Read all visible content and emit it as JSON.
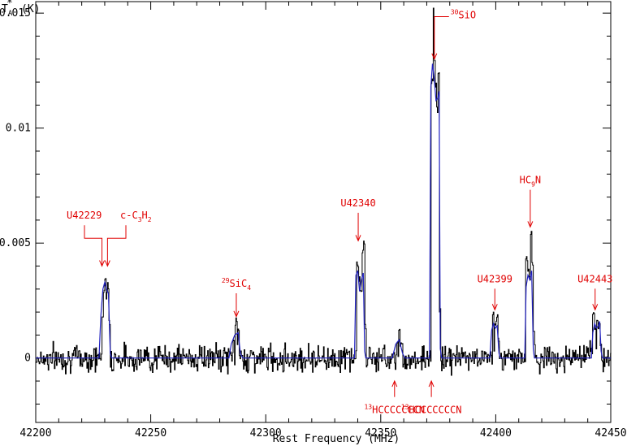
{
  "chart_data": {
    "type": "line",
    "xlabel": "Rest Frequency (MHz)",
    "ylabel": "T",
    "ylabel_sub": "A",
    "ylabel_sup": "*",
    "ylabel_unit": "(K)",
    "xlim": [
      42200,
      42450
    ],
    "ylim": [
      -0.0028,
      0.0155
    ],
    "x_ticks": [
      42200,
      42250,
      42300,
      42350,
      42400,
      42450
    ],
    "x_tick_labels": [
      "42200",
      "42250",
      "42300",
      "42350",
      "42400",
      "42450"
    ],
    "y_ticks": [
      0,
      0.005,
      0.01,
      0.015
    ],
    "y_tick_labels": [
      "0",
      "0.005",
      "0.01",
      "0.015"
    ],
    "noise_rms": 0.0005,
    "series": [
      {
        "style": "histogram",
        "color": "#000000",
        "points": [
          [
            42229.0,
            0.0018
          ],
          [
            42229.6,
            0.003
          ],
          [
            42230.2,
            0.0035
          ],
          [
            42230.8,
            0.0027
          ],
          [
            42231.4,
            0.0031
          ],
          [
            42232.0,
            0.0016
          ],
          [
            42286.0,
            0.0008
          ],
          [
            42287.0,
            0.0016
          ],
          [
            42288.0,
            0.0012
          ],
          [
            42339.8,
            0.0041
          ],
          [
            42340.6,
            0.0035
          ],
          [
            42341.3,
            0.003
          ],
          [
            42342.0,
            0.0046
          ],
          [
            42342.6,
            0.005
          ],
          [
            42343.2,
            0.0014
          ],
          [
            42357.0,
            0.0008
          ],
          [
            42358.0,
            0.0012
          ],
          [
            42359.0,
            0.0006
          ],
          [
            42372.2,
            0.012
          ],
          [
            42372.6,
            0.0152
          ],
          [
            42373.2,
            0.013
          ],
          [
            42373.8,
            0.0119
          ],
          [
            42374.4,
            0.0108
          ],
          [
            42375.0,
            0.0125
          ],
          [
            42375.6,
            0.002
          ],
          [
            42398.8,
            0.0019
          ],
          [
            42399.8,
            0.0015
          ],
          [
            42400.6,
            0.0018
          ],
          [
            42401.2,
            0.0008
          ],
          [
            42413.3,
            0.0043
          ],
          [
            42414.0,
            0.0038
          ],
          [
            42414.6,
            0.0035
          ],
          [
            42415.2,
            0.0054
          ],
          [
            42415.8,
            0.0042
          ],
          [
            42416.4,
            0.0012
          ],
          [
            42442.4,
            0.002
          ],
          [
            42443.2,
            0.0013
          ],
          [
            42444.0,
            0.0016
          ],
          [
            42444.8,
            0.0014
          ],
          [
            42445.4,
            0.0006
          ]
        ]
      },
      {
        "style": "line",
        "color": "#2020c0",
        "points": [
          [
            42200,
            0
          ],
          [
            42227.5,
            0
          ],
          [
            42228.3,
            0.0018
          ],
          [
            42229.2,
            0.003
          ],
          [
            42230.0,
            0.0033
          ],
          [
            42230.8,
            0.003
          ],
          [
            42231.6,
            0.0028
          ],
          [
            42232.4,
            0.0002
          ],
          [
            42233.0,
            0
          ],
          [
            42284.0,
            0
          ],
          [
            42285.0,
            0.0006
          ],
          [
            42286.5,
            0.001
          ],
          [
            42288.0,
            0.0011
          ],
          [
            42289.0,
            0.0002
          ],
          [
            42290.0,
            0
          ],
          [
            42338.6,
            0
          ],
          [
            42339.2,
            0.0036
          ],
          [
            42340.0,
            0.0038
          ],
          [
            42340.8,
            0.0029
          ],
          [
            42341.6,
            0.0034
          ],
          [
            42342.4,
            0.0037
          ],
          [
            42343.0,
            0.0003
          ],
          [
            42343.5,
            0
          ],
          [
            42355.0,
            0
          ],
          [
            42356.5,
            0.0006
          ],
          [
            42358.0,
            0.0008
          ],
          [
            42359.5,
            0.0002
          ],
          [
            42360.5,
            0
          ],
          [
            42371.2,
            0
          ],
          [
            42371.8,
            0.0118
          ],
          [
            42372.5,
            0.0128
          ],
          [
            42373.3,
            0.0121
          ],
          [
            42374.0,
            0.0112
          ],
          [
            42374.8,
            0.0113
          ],
          [
            42375.4,
            0.0116
          ],
          [
            42375.9,
            0.0004
          ],
          [
            42376.5,
            0
          ],
          [
            42397.4,
            0
          ],
          [
            42398.2,
            0.0012
          ],
          [
            42399.0,
            0.0015
          ],
          [
            42399.8,
            0.0013
          ],
          [
            42400.6,
            0.0014
          ],
          [
            42401.4,
            0.0002
          ],
          [
            42402.0,
            0
          ],
          [
            42412.6,
            0
          ],
          [
            42413.2,
            0.0031
          ],
          [
            42414.0,
            0.0036
          ],
          [
            42414.8,
            0.0034
          ],
          [
            42415.6,
            0.0038
          ],
          [
            42416.3,
            0.0004
          ],
          [
            42416.8,
            0
          ],
          [
            42441.6,
            0
          ],
          [
            42442.2,
            0.0011
          ],
          [
            42443.0,
            0.0015
          ],
          [
            42443.8,
            0.0013
          ],
          [
            42444.6,
            0.0014
          ],
          [
            42445.2,
            0.0016
          ],
          [
            42445.8,
            0.0003
          ],
          [
            42446.4,
            0
          ],
          [
            42450,
            0
          ]
        ]
      }
    ],
    "annotations": [
      {
        "label": "U42229",
        "pre": "",
        "sup": "",
        "mid": "",
        "sub": "",
        "post": "",
        "position": "above",
        "x": 42229.5,
        "y_tip": 0.004,
        "y_text": 0.0062,
        "group": "bracket-left"
      },
      {
        "label": "c-C",
        "pre": "",
        "sup": "",
        "mid": "",
        "sub": "3",
        "post": "H",
        "sub2": "2",
        "position": "above",
        "x": 42230.5,
        "y_tip": 0.004,
        "y_text": 0.0062,
        "group": "bracket-right"
      },
      {
        "label": "SiC",
        "pre": "",
        "sup": "29",
        "sub": "4",
        "position": "above",
        "x": 42287.2,
        "y_tip": 0.0018,
        "y_text": 0.0031
      },
      {
        "label": "U42340",
        "position": "above",
        "x": 42340.2,
        "y_tip": 0.0051,
        "y_text": 0.0066
      },
      {
        "label": "SiO",
        "sup": "30",
        "position": "above-right",
        "x": 42373.3,
        "y_tip": 0.013,
        "y_text": 0.0152
      },
      {
        "label": "U42399",
        "position": "above",
        "x": 42399.6,
        "y_tip": 0.0021,
        "y_text": 0.0033
      },
      {
        "label": "HC",
        "sub": "9",
        "post": "N",
        "position": "above",
        "x": 42415.0,
        "y_tip": 0.0057,
        "y_text": 0.0076
      },
      {
        "label": "U42443",
        "position": "above",
        "x": 42443.2,
        "y_tip": 0.0021,
        "y_text": 0.0033
      },
      {
        "label": "HC",
        "sup": "13",
        "post": "CCCCCCN",
        "position": "below",
        "x": 42356.0,
        "y_tip": -0.001,
        "y_text": -0.0024
      },
      {
        "label": "HCCCCCC",
        "sup": "13",
        "post": "CN",
        "position": "below",
        "x": 42372.0,
        "y_tip": -0.001,
        "y_text": -0.0024
      }
    ]
  }
}
